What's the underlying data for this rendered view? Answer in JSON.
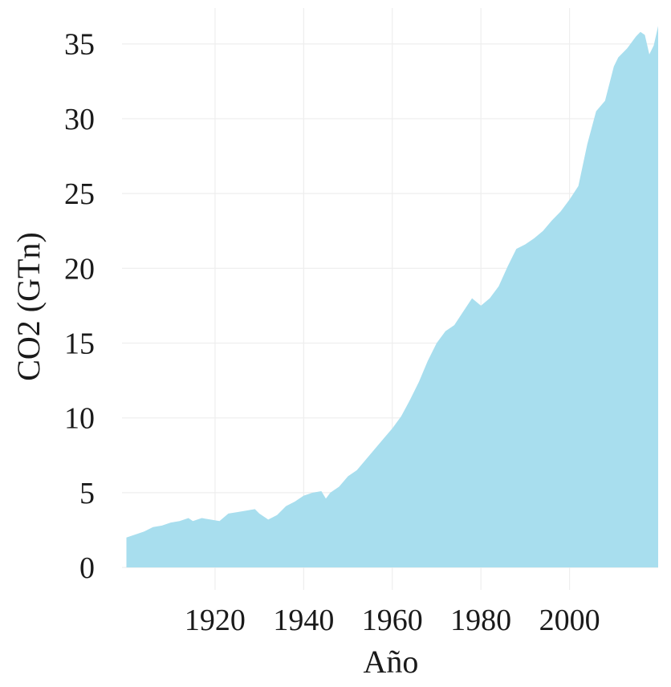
{
  "chart_data": {
    "type": "area",
    "xlabel": "Año",
    "ylabel": "CO2 (GTn)",
    "xlim": [
      1899,
      2020
    ],
    "ylim": [
      -1.5,
      37.4
    ],
    "xticks": [
      1920,
      1940,
      1960,
      1980,
      2000
    ],
    "yticks": [
      0,
      5,
      10,
      15,
      20,
      25,
      30,
      35
    ],
    "grid": true,
    "fill_color": "#A8DEEE",
    "x": [
      1900,
      1902,
      1904,
      1906,
      1908,
      1910,
      1912,
      1914,
      1915,
      1917,
      1919,
      1921,
      1923,
      1925,
      1927,
      1929,
      1930,
      1932,
      1934,
      1936,
      1938,
      1940,
      1942,
      1944,
      1945,
      1946,
      1948,
      1950,
      1952,
      1954,
      1956,
      1958,
      1960,
      1962,
      1964,
      1966,
      1968,
      1970,
      1972,
      1974,
      1976,
      1978,
      1980,
      1982,
      1984,
      1986,
      1988,
      1990,
      1992,
      1994,
      1996,
      1998,
      2000,
      2002,
      2004,
      2006,
      2008,
      2010,
      2011,
      2013,
      2015,
      2016,
      2017,
      2018,
      2019,
      2020
    ],
    "values": [
      2.0,
      2.2,
      2.4,
      2.7,
      2.8,
      3.0,
      3.1,
      3.3,
      3.1,
      3.3,
      3.2,
      3.1,
      3.6,
      3.7,
      3.8,
      3.9,
      3.6,
      3.2,
      3.5,
      4.1,
      4.4,
      4.8,
      5.0,
      5.1,
      4.6,
      5.0,
      5.4,
      6.1,
      6.5,
      7.2,
      7.9,
      8.6,
      9.3,
      10.1,
      11.2,
      12.4,
      13.8,
      15.0,
      15.8,
      16.2,
      17.1,
      18.0,
      17.5,
      18.0,
      18.8,
      20.1,
      21.3,
      21.6,
      22.0,
      22.5,
      23.2,
      23.8,
      24.6,
      25.5,
      28.3,
      30.5,
      31.2,
      33.5,
      34.1,
      34.7,
      35.5,
      35.8,
      35.6,
      34.3,
      34.9,
      36.2
    ]
  }
}
